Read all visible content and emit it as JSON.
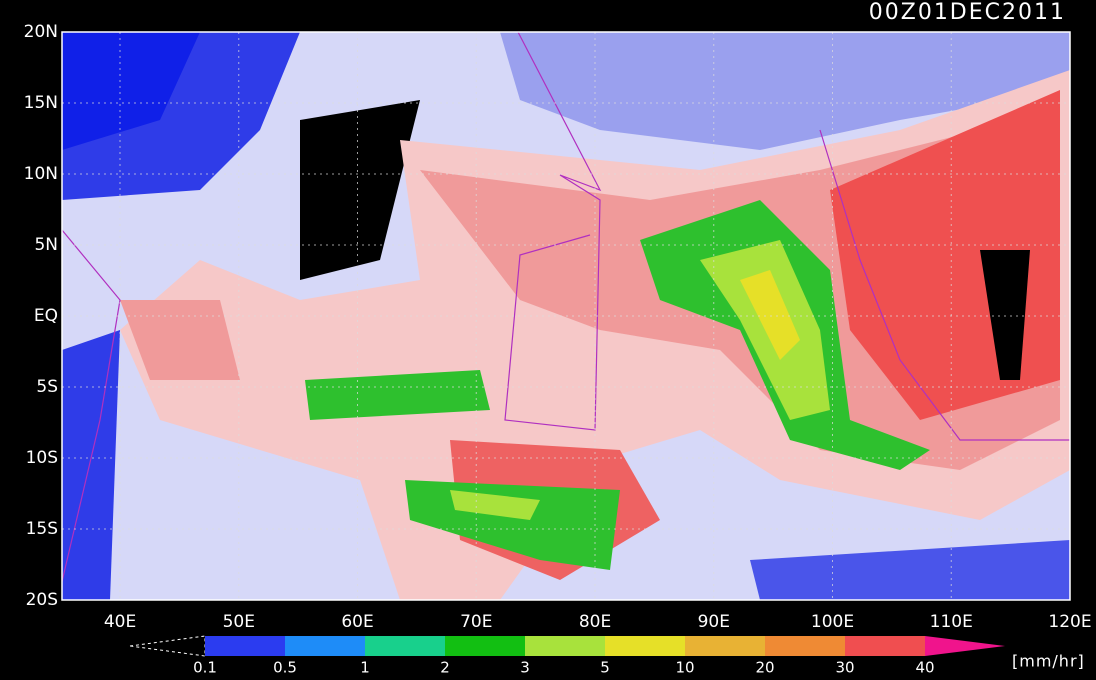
{
  "header": {
    "timestamp": "00Z01DEC2011"
  },
  "axes": {
    "lat_labels": [
      "20N",
      "15N",
      "10N",
      "5N",
      "EQ",
      "5S",
      "10S",
      "15S",
      "20S"
    ],
    "lon_labels": [
      "40E",
      "50E",
      "60E",
      "70E",
      "80E",
      "90E",
      "100E",
      "110E",
      "120E"
    ]
  },
  "colorbar": {
    "labels": [
      "0.1",
      "0.5",
      "1",
      "2",
      "3",
      "5",
      "10",
      "20",
      "30",
      "40"
    ],
    "colors": [
      "#2b3cf0",
      "#1e8cf8",
      "#18d08c",
      "#12bf12",
      "#a8e23c",
      "#e6e028",
      "#e8b234",
      "#ef8a34",
      "#f04e50",
      "#f0148c"
    ],
    "unit": "[mm/hr]"
  }
}
